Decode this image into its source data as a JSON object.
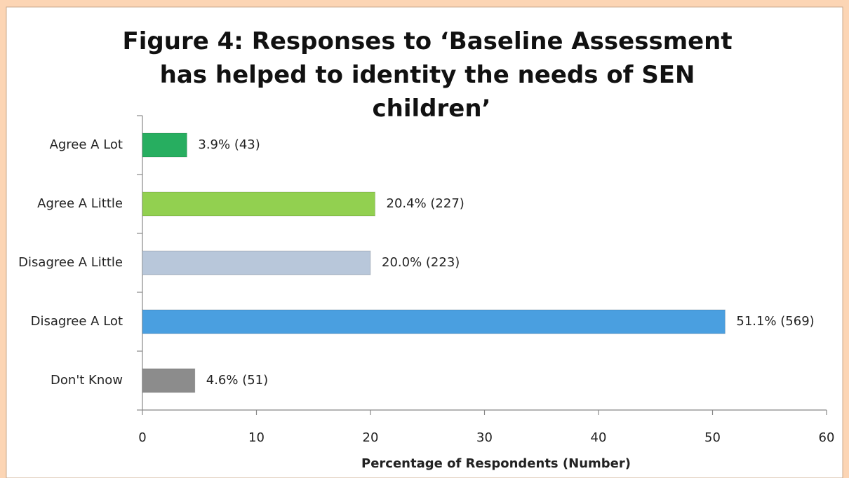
{
  "chart_data": {
    "type": "barh",
    "title": "Figure 4: Responses to ‘Baseline Assessment has helped to identity the needs of SEN children’",
    "categories": [
      "Agree A Lot",
      "Agree A Little",
      "Disagree A Little",
      "Disagree A Lot",
      "Don't Know"
    ],
    "values": [
      3.9,
      20.4,
      20.0,
      51.1,
      4.6
    ],
    "value_labels": [
      "3.9% (43)",
      "20.4% (227)",
      "20.0% (223)",
      "51.1% (569)",
      "4.6% (51)"
    ],
    "colors": [
      "#27ae60",
      "#92d050",
      "#b8c7da",
      "#4a9fe0",
      "#8c8c8c"
    ],
    "xlabel": "Percentage of Respondents (Number)",
    "xlim": [
      0,
      60
    ],
    "xticks": [
      0,
      10,
      20,
      30,
      40,
      50,
      60
    ]
  }
}
